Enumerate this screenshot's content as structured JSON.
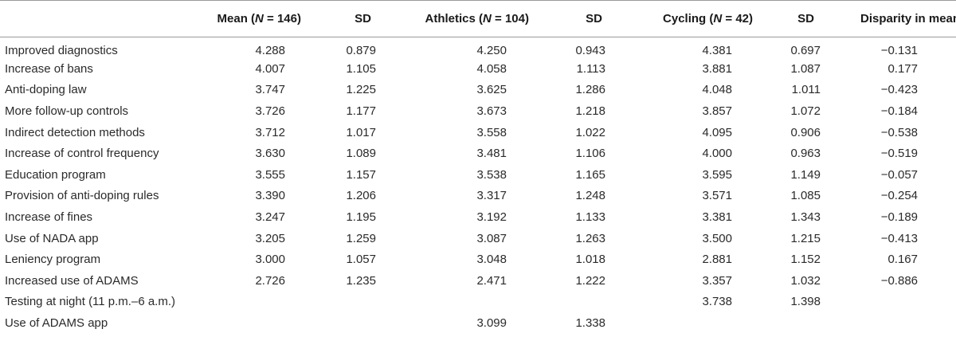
{
  "table": {
    "headers": {
      "label": "",
      "mean": {
        "prefix": "Mean (",
        "n": "N",
        "suffix": " = 146)"
      },
      "sd1": "SD",
      "athletics": {
        "prefix": "Athletics (",
        "n": "N",
        "suffix": " = 104)"
      },
      "sd2": "SD",
      "cycling": {
        "prefix": "Cycling (",
        "n": "N",
        "suffix": " = 42)"
      },
      "sd3": "SD",
      "disparity": "Disparity in mean"
    },
    "rows": [
      {
        "label": "Improved diagnostics",
        "mean": "4.288",
        "sd1": "0.879",
        "athletics": "4.250",
        "sd2": "0.943",
        "cycling": "4.381",
        "sd3": "0.697",
        "disparity": "−0.131"
      },
      {
        "label": "Increase of bans",
        "mean": "4.007",
        "sd1": "1.105",
        "athletics": "4.058",
        "sd2": "1.113",
        "cycling": "3.881",
        "sd3": "1.087",
        "disparity": "0.177"
      },
      {
        "label": "Anti-doping law",
        "mean": "3.747",
        "sd1": "1.225",
        "athletics": "3.625",
        "sd2": "1.286",
        "cycling": "4.048",
        "sd3": "1.011",
        "disparity": "−0.423"
      },
      {
        "label": "More follow-up controls",
        "mean": "3.726",
        "sd1": "1.177",
        "athletics": "3.673",
        "sd2": "1.218",
        "cycling": "3.857",
        "sd3": "1.072",
        "disparity": "−0.184"
      },
      {
        "label": "Indirect detection methods",
        "mean": "3.712",
        "sd1": "1.017",
        "athletics": "3.558",
        "sd2": "1.022",
        "cycling": "4.095",
        "sd3": "0.906",
        "disparity": "−0.538"
      },
      {
        "label": "Increase of control frequency",
        "mean": "3.630",
        "sd1": "1.089",
        "athletics": "3.481",
        "sd2": "1.106",
        "cycling": "4.000",
        "sd3": "0.963",
        "disparity": "−0.519"
      },
      {
        "label": "Education program",
        "mean": "3.555",
        "sd1": "1.157",
        "athletics": "3.538",
        "sd2": "1.165",
        "cycling": "3.595",
        "sd3": "1.149",
        "disparity": "−0.057"
      },
      {
        "label": "Provision of anti-doping rules",
        "mean": "3.390",
        "sd1": "1.206",
        "athletics": "3.317",
        "sd2": "1.248",
        "cycling": "3.571",
        "sd3": "1.085",
        "disparity": "−0.254"
      },
      {
        "label": "Increase of fines",
        "mean": "3.247",
        "sd1": "1.195",
        "athletics": "3.192",
        "sd2": "1.133",
        "cycling": "3.381",
        "sd3": "1.343",
        "disparity": "−0.189"
      },
      {
        "label": "Use of NADA app",
        "mean": "3.205",
        "sd1": "1.259",
        "athletics": "3.087",
        "sd2": "1.263",
        "cycling": "3.500",
        "sd3": "1.215",
        "disparity": "−0.413"
      },
      {
        "label": "Leniency program",
        "mean": "3.000",
        "sd1": "1.057",
        "athletics": "3.048",
        "sd2": "1.018",
        "cycling": "2.881",
        "sd3": "1.152",
        "disparity": "0.167"
      },
      {
        "label": "Increased use of ADAMS",
        "mean": "2.726",
        "sd1": "1.235",
        "athletics": "2.471",
        "sd2": "1.222",
        "cycling": "3.357",
        "sd3": "1.032",
        "disparity": "−0.886"
      },
      {
        "label": "Testing at night (11 p.m.–6 a.m.)",
        "mean": "",
        "sd1": "",
        "athletics": "",
        "sd2": "",
        "cycling": "3.738",
        "sd3": "1.398",
        "disparity": ""
      },
      {
        "label": "Use of ADAMS app",
        "mean": "",
        "sd1": "",
        "athletics": "3.099",
        "sd2": "1.338",
        "cycling": "",
        "sd3": "",
        "disparity": ""
      }
    ]
  }
}
